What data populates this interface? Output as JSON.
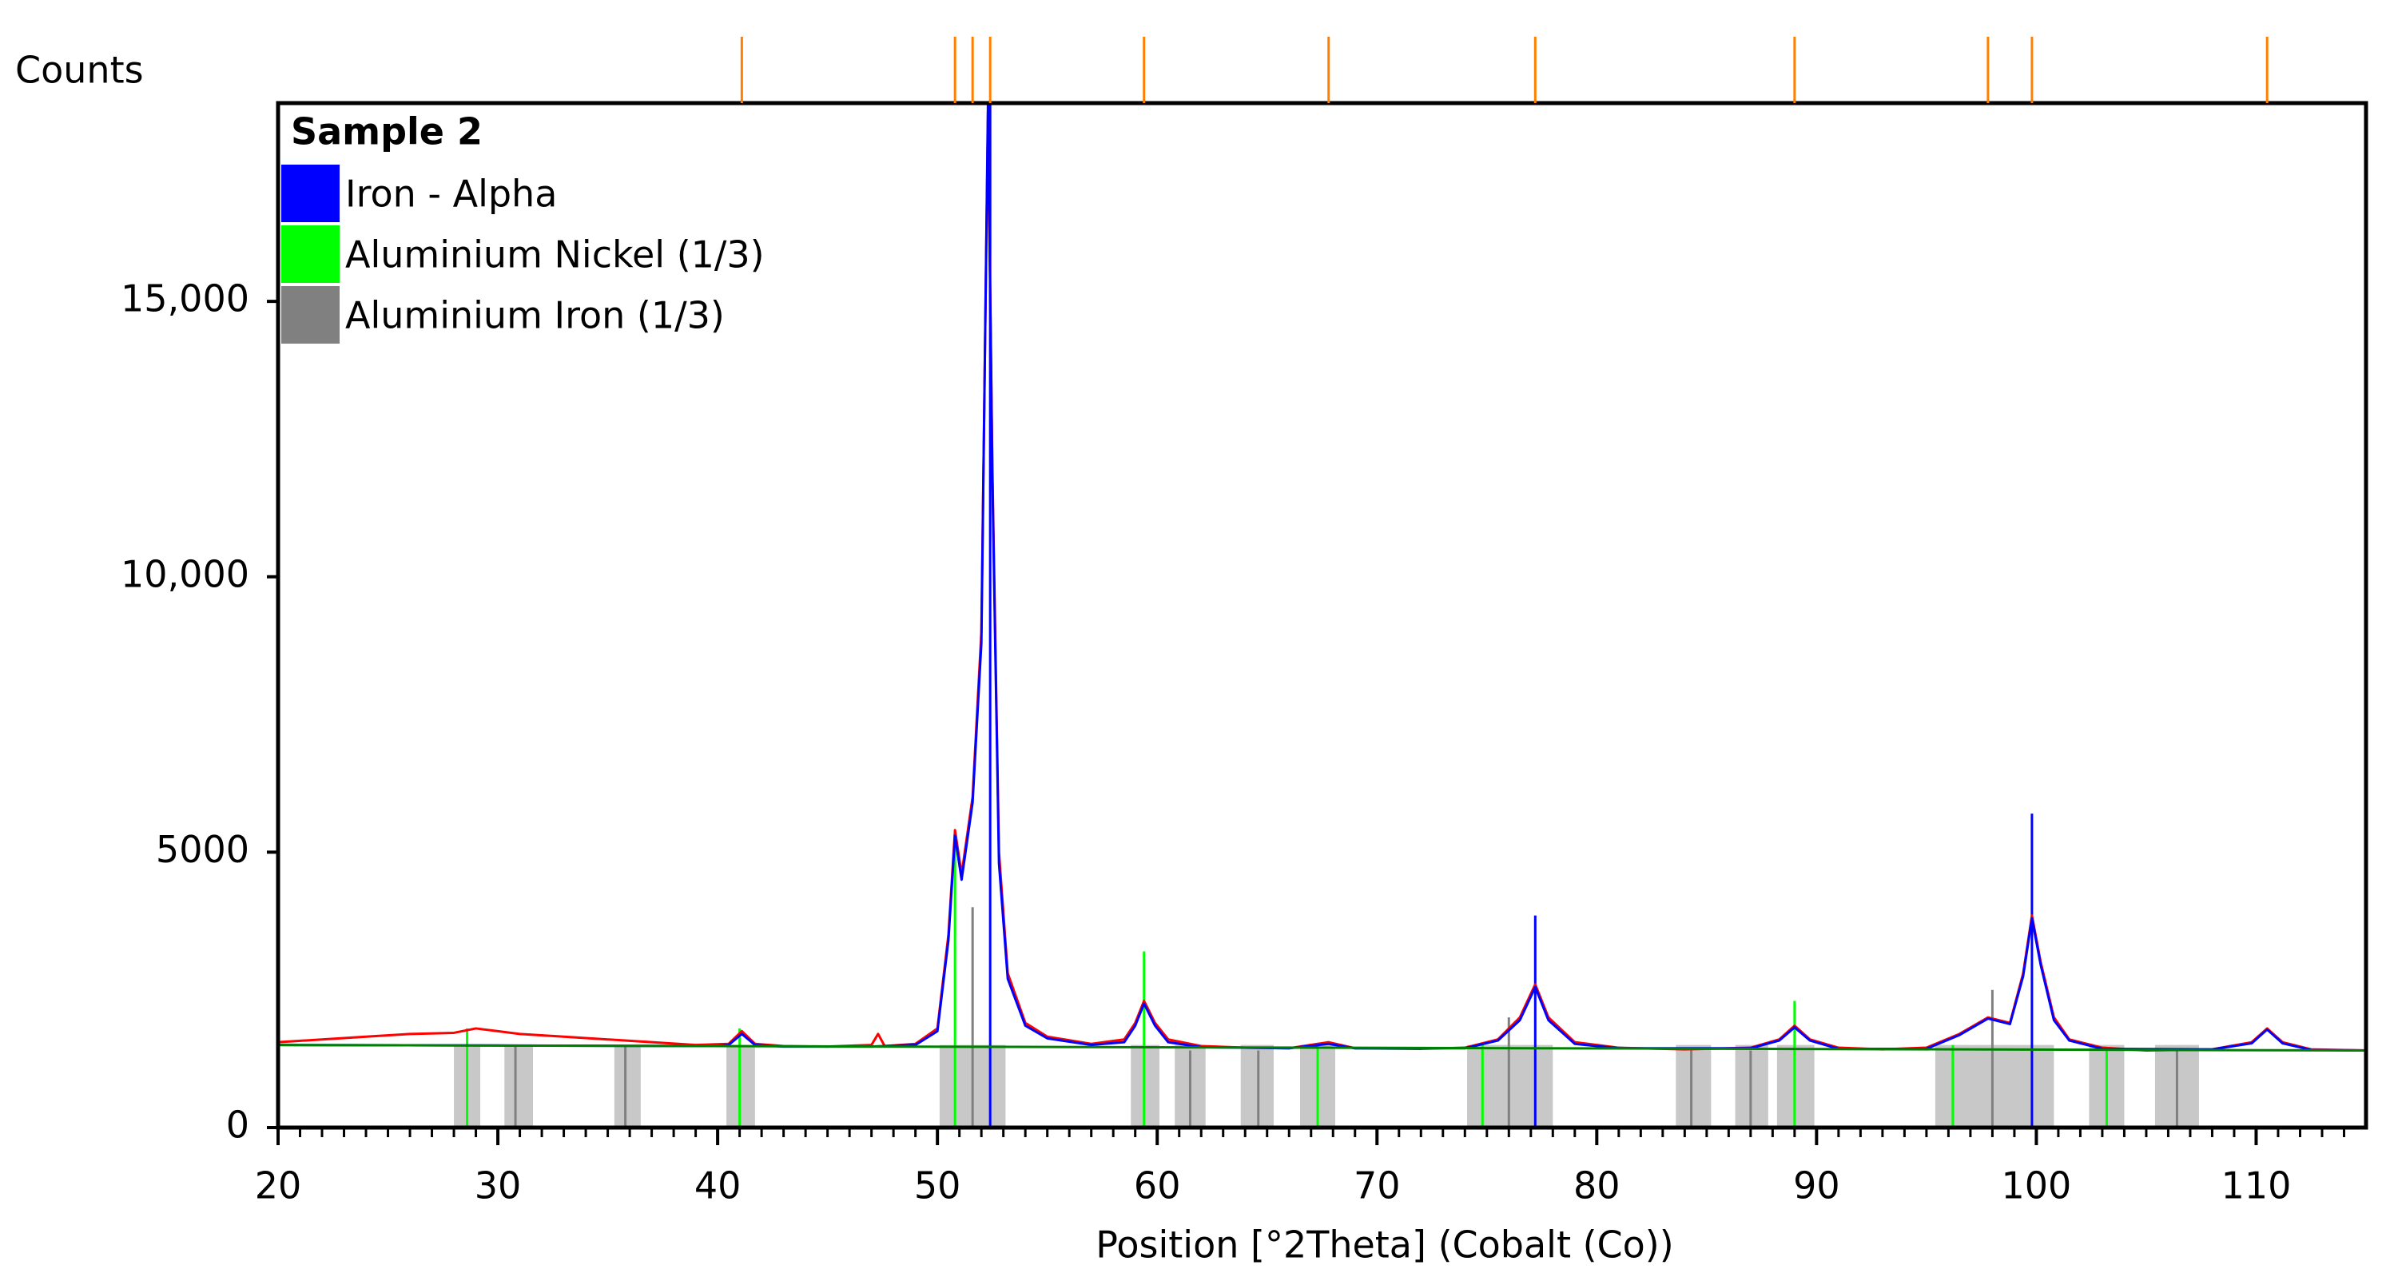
{
  "chart_data": {
    "type": "line",
    "ylabel": "Counts",
    "xlabel": "Position [°2Theta] (Cobalt (Co))",
    "legend_title": "Sample 2",
    "xlim": [
      20,
      115
    ],
    "ylim": [
      0,
      18600
    ],
    "xticks": [
      20,
      30,
      40,
      50,
      60,
      70,
      80,
      90,
      100,
      110
    ],
    "xminorticks": [
      21,
      22,
      23,
      24,
      25,
      26,
      27,
      28,
      29,
      31,
      32,
      33,
      34,
      35,
      36,
      37,
      38,
      39,
      41,
      42,
      43,
      44,
      45,
      46,
      47,
      48,
      49,
      51,
      52,
      53,
      54,
      55,
      56,
      57,
      58,
      59,
      61,
      62,
      63,
      64,
      65,
      66,
      67,
      68,
      69,
      71,
      72,
      73,
      74,
      75,
      76,
      77,
      78,
      79,
      81,
      82,
      83,
      84,
      85,
      86,
      87,
      88,
      89,
      91,
      92,
      93,
      94,
      95,
      96,
      97,
      98,
      99,
      101,
      102,
      103,
      104,
      105,
      106,
      107,
      108,
      109,
      111,
      112,
      113,
      114
    ],
    "yticks": [
      0,
      5000,
      {
        "value": 10000,
        "label": "10,000"
      },
      {
        "value": 15000,
        "label": "15,000"
      }
    ],
    "bands": {
      "color": "#c8c8c8",
      "top": 1500,
      "ranges": [
        [
          28.0,
          29.2
        ],
        [
          30.3,
          31.6
        ],
        [
          35.3,
          36.5
        ],
        [
          40.4,
          41.7
        ],
        [
          50.1,
          53.1
        ],
        [
          58.8,
          60.1
        ],
        [
          60.8,
          62.2
        ],
        [
          63.8,
          65.3
        ],
        [
          66.5,
          68.1
        ],
        [
          74.1,
          78.0
        ],
        [
          83.6,
          85.2
        ],
        [
          86.3,
          87.8
        ],
        [
          88.2,
          89.9
        ],
        [
          95.4,
          100.8
        ],
        [
          102.4,
          104.0
        ],
        [
          105.4,
          107.4
        ]
      ]
    },
    "series": [
      {
        "color": "#ff0000",
        "x": [
          20,
          22,
          24,
          26,
          28,
          29,
          30,
          31,
          33,
          35,
          37,
          39,
          40.5,
          41.1,
          41.7,
          43,
          45,
          47,
          47.3,
          47.6,
          49,
          50,
          50.5,
          50.8,
          51.1,
          51.6,
          52.0,
          52.3,
          52.5,
          52.8,
          53.2,
          54,
          55,
          57,
          58.5,
          59,
          59.4,
          59.9,
          60.5,
          62,
          64,
          66,
          67.8,
          69,
          72,
          74,
          75.5,
          76.5,
          77.2,
          77.8,
          79,
          81,
          84,
          87,
          88.3,
          89.0,
          89.7,
          91,
          93,
          95,
          96.5,
          97.8,
          98.8,
          99.4,
          99.8,
          100.2,
          100.8,
          101.5,
          103,
          105,
          108,
          109.8,
          110.5,
          111.2,
          112.5,
          115
        ],
        "values": [
          1550,
          1600,
          1650,
          1700,
          1720,
          1800,
          1750,
          1700,
          1650,
          1600,
          1550,
          1500,
          1520,
          1750,
          1520,
          1480,
          1470,
          1500,
          1700,
          1480,
          1520,
          1800,
          3500,
          5400,
          4600,
          6000,
          9000,
          18400,
          12000,
          5000,
          2800,
          1900,
          1650,
          1520,
          1600,
          1900,
          2300,
          1900,
          1600,
          1480,
          1450,
          1440,
          1550,
          1440,
          1430,
          1450,
          1600,
          2000,
          2600,
          2000,
          1550,
          1450,
          1420,
          1450,
          1600,
          1850,
          1600,
          1450,
          1420,
          1450,
          1700,
          2000,
          1900,
          2800,
          3850,
          3000,
          2000,
          1600,
          1450,
          1400,
          1420,
          1550,
          1800,
          1550,
          1420,
          1400
        ]
      },
      {
        "color": "#0000ff",
        "x": [
          20,
          30,
          40,
          40.5,
          41.1,
          41.7,
          43,
          47,
          49,
          50,
          50.5,
          50.8,
          51.1,
          51.6,
          52.0,
          52.3,
          52.5,
          52.8,
          53.2,
          54,
          55,
          57,
          58.5,
          59,
          59.4,
          59.9,
          60.5,
          62,
          66,
          67.8,
          69,
          74,
          75.5,
          76.5,
          77.2,
          77.8,
          79,
          81,
          87,
          88.3,
          89.0,
          89.7,
          91,
          95,
          96.5,
          97.8,
          98.8,
          99.4,
          99.8,
          100.2,
          100.8,
          101.5,
          103,
          108,
          109.8,
          110.5,
          111.2,
          112.5,
          115
        ],
        "values": [
          1500,
          1490,
          1480,
          1500,
          1700,
          1500,
          1470,
          1470,
          1500,
          1750,
          3400,
          5300,
          4500,
          5900,
          8800,
          18600,
          11800,
          4800,
          2700,
          1850,
          1620,
          1500,
          1550,
          1850,
          2250,
          1850,
          1550,
          1460,
          1440,
          1520,
          1440,
          1440,
          1580,
          1950,
          2550,
          1950,
          1520,
          1440,
          1440,
          1580,
          1820,
          1580,
          1430,
          1430,
          1680,
          1980,
          1880,
          2750,
          3800,
          2950,
          1950,
          1580,
          1430,
          1420,
          1530,
          1780,
          1530,
          1410,
          1400
        ]
      },
      {
        "color": "#008000",
        "x": [
          20,
          115
        ],
        "values": [
          1500,
          1400
        ]
      }
    ],
    "phases": [
      {
        "name": "Iron - Alpha",
        "color": "#0000ff",
        "positions": [
          52.4,
          77.2,
          99.8
        ],
        "intensities": [
          18600,
          3850,
          5700
        ]
      },
      {
        "name": "Aluminium Nickel (1/3)",
        "color": "#00ff00",
        "positions": [
          28.6,
          41.0,
          50.8,
          59.4,
          67.3,
          74.8,
          89.0,
          96.2,
          103.2
        ],
        "intensities": [
          1800,
          1800,
          5400,
          3200,
          1500,
          1500,
          2300,
          1500,
          1400
        ]
      },
      {
        "name": "Aluminium Iron (1/3)",
        "color": "#808080",
        "positions": [
          30.8,
          35.8,
          51.6,
          61.5,
          64.6,
          76.0,
          84.3,
          87.0,
          98.0,
          106.4
        ],
        "intensities": [
          1500,
          1500,
          4000,
          1400,
          1400,
          2000,
          1400,
          1400,
          2500,
          1400
        ]
      }
    ],
    "peak_markers": {
      "color": "#ff8000",
      "positions": [
        41.1,
        50.8,
        51.6,
        52.4,
        59.4,
        67.8,
        77.2,
        89.0,
        97.8,
        99.8,
        110.5
      ]
    }
  }
}
